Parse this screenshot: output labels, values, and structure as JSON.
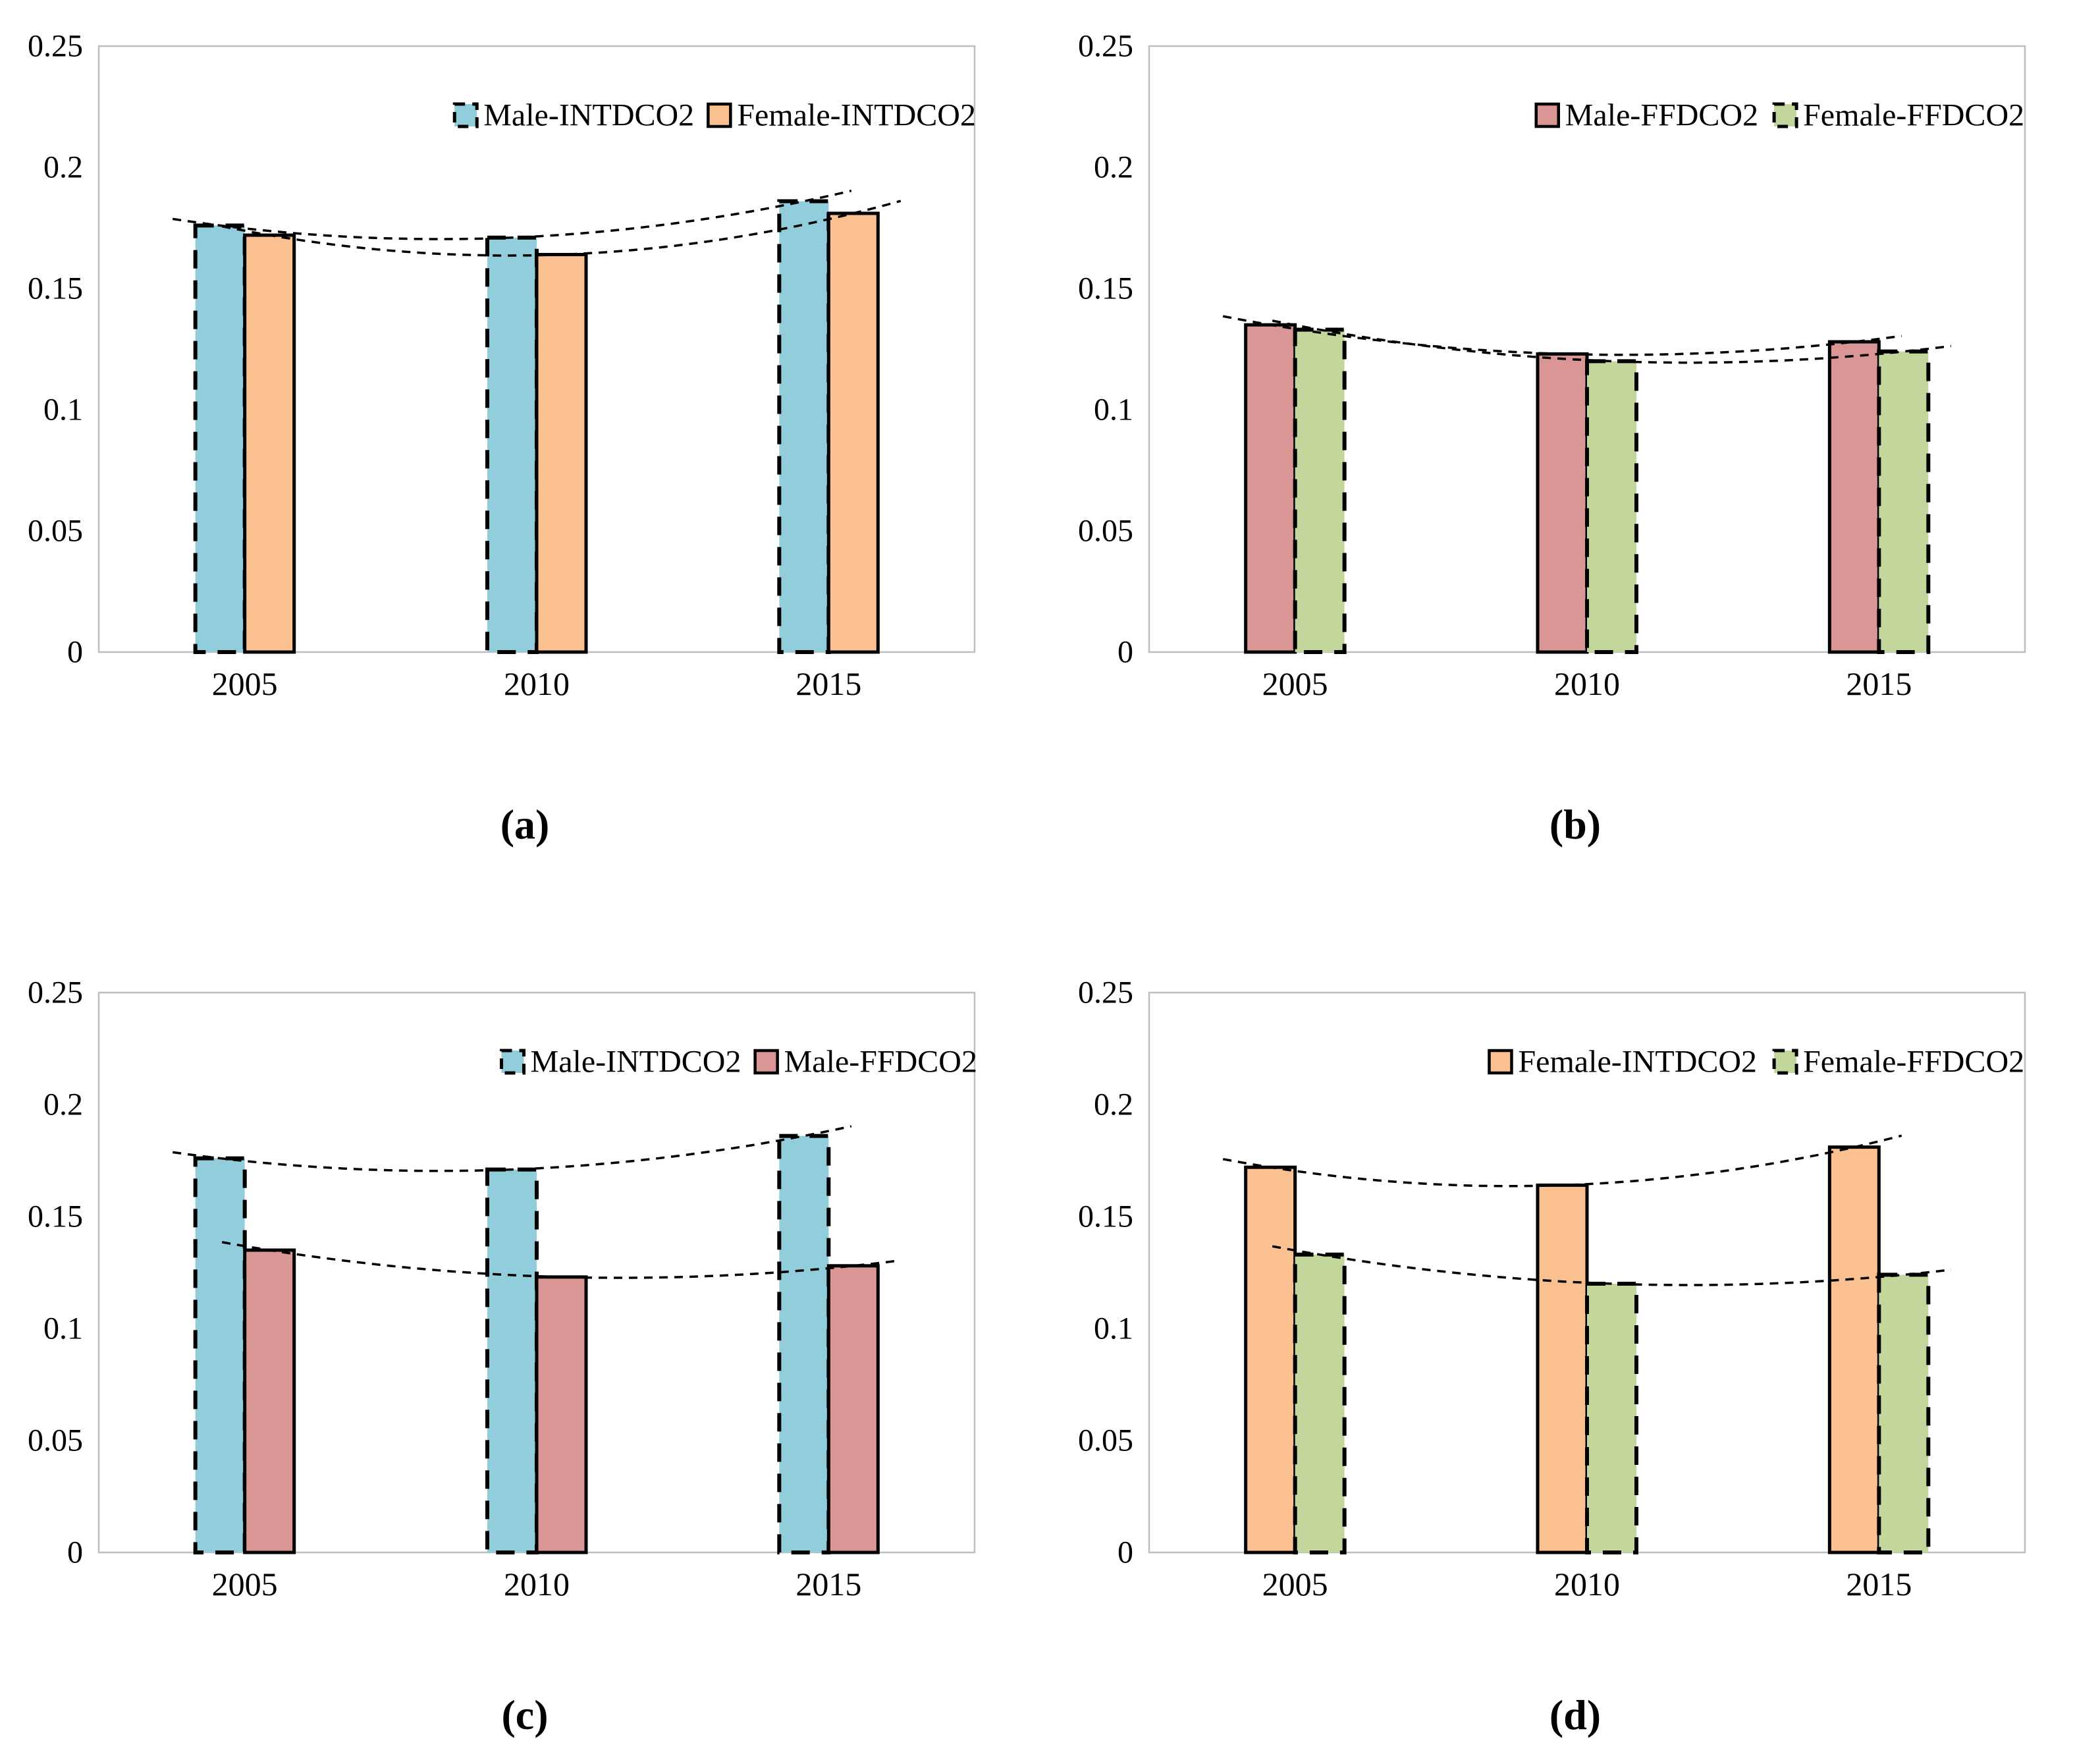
{
  "figure": {
    "background": "#ffffff",
    "plot_border_color": "#bfbfbf",
    "bar_outline_color": "#000000",
    "trendline_color": "#000000",
    "panel_captions": [
      "(a)",
      "(b)",
      "(c)",
      "(d)"
    ]
  },
  "series_palette": {
    "male_intdco2": "#92CDDC",
    "female_intdco2": "#FAC090",
    "male_ffdco2": "#D99694",
    "female_ffdco2": "#C3D69B"
  },
  "chart_data": [
    {
      "type": "bar",
      "caption": "(a)",
      "title": "",
      "xlabel": "",
      "ylabel": "",
      "categories": [
        "2005",
        "2010",
        "2015"
      ],
      "ylim": [
        0,
        0.25
      ],
      "yticks": {
        "values": [
          0,
          0.05,
          0.1,
          0.15,
          0.2,
          0.25
        ],
        "labels": [
          "0",
          "0.05",
          "0.1",
          "0.15",
          "0.2",
          "0.25"
        ]
      },
      "grid": "off",
      "legend_position": "top-right-inside",
      "series": [
        {
          "name": "Male-INTDCO2",
          "color": "#92CDDC",
          "border_style": "dashed",
          "values": [
            0.176,
            0.171,
            0.186
          ],
          "trendline": "polynomial-order2-dashed"
        },
        {
          "name": "Female-INTDCO2",
          "color": "#FAC090",
          "border_style": "solid",
          "values": [
            0.172,
            0.164,
            0.181
          ],
          "trendline": "polynomial-order2-dashed"
        }
      ]
    },
    {
      "type": "bar",
      "caption": "(b)",
      "title": "",
      "xlabel": "",
      "ylabel": "",
      "categories": [
        "2005",
        "2010",
        "2015"
      ],
      "ylim": [
        0,
        0.25
      ],
      "yticks": {
        "values": [
          0,
          0.05,
          0.1,
          0.15,
          0.2,
          0.25
        ],
        "labels": [
          "0",
          "0.05",
          "0.1",
          "0.15",
          "0.2",
          "0.25"
        ]
      },
      "grid": "off",
      "legend_position": "top-right-inside",
      "series": [
        {
          "name": "Male-FFDCO2",
          "color": "#D99694",
          "border_style": "solid",
          "values": [
            0.135,
            0.123,
            0.128
          ],
          "trendline": "polynomial-order2-dashed"
        },
        {
          "name": "Female-FFDCO2",
          "color": "#C3D69B",
          "border_style": "dashed",
          "values": [
            0.133,
            0.12,
            0.124
          ],
          "trendline": "polynomial-order2-dashed"
        }
      ]
    },
    {
      "type": "bar",
      "caption": "(c)",
      "title": "",
      "xlabel": "",
      "ylabel": "",
      "categories": [
        "2005",
        "2010",
        "2015"
      ],
      "ylim": [
        0,
        0.25
      ],
      "yticks": {
        "values": [
          0,
          0.05,
          0.1,
          0.15,
          0.2,
          0.25
        ],
        "labels": [
          "0",
          "0.05",
          "0.1",
          "0.15",
          "0.2",
          "0.25"
        ]
      },
      "grid": "off",
      "legend_position": "top-right-inside",
      "series": [
        {
          "name": "Male-INTDCO2",
          "color": "#92CDDC",
          "border_style": "dashed",
          "values": [
            0.176,
            0.171,
            0.186
          ],
          "trendline": "polynomial-order2-dashed"
        },
        {
          "name": "Male-FFDCO2",
          "color": "#D99694",
          "border_style": "solid",
          "values": [
            0.135,
            0.123,
            0.128
          ],
          "trendline": "polynomial-order2-dashed"
        }
      ]
    },
    {
      "type": "bar",
      "caption": "(d)",
      "title": "",
      "xlabel": "",
      "ylabel": "",
      "categories": [
        "2005",
        "2010",
        "2015"
      ],
      "ylim": [
        0,
        0.25
      ],
      "yticks": {
        "values": [
          0,
          0.05,
          0.1,
          0.15,
          0.2,
          0.25
        ],
        "labels": [
          "0",
          "0.05",
          "0.1",
          "0.15",
          "0.2",
          "0.25"
        ]
      },
      "grid": "off",
      "legend_position": "top-right-inside",
      "series": [
        {
          "name": "Female-INTDCO2",
          "color": "#FAC090",
          "border_style": "solid",
          "values": [
            0.172,
            0.164,
            0.181
          ],
          "trendline": "polynomial-order2-dashed"
        },
        {
          "name": "Female-FFDCO2",
          "color": "#C3D69B",
          "border_style": "dashed",
          "values": [
            0.133,
            0.12,
            0.124
          ],
          "trendline": "polynomial-order2-dashed"
        }
      ]
    }
  ]
}
